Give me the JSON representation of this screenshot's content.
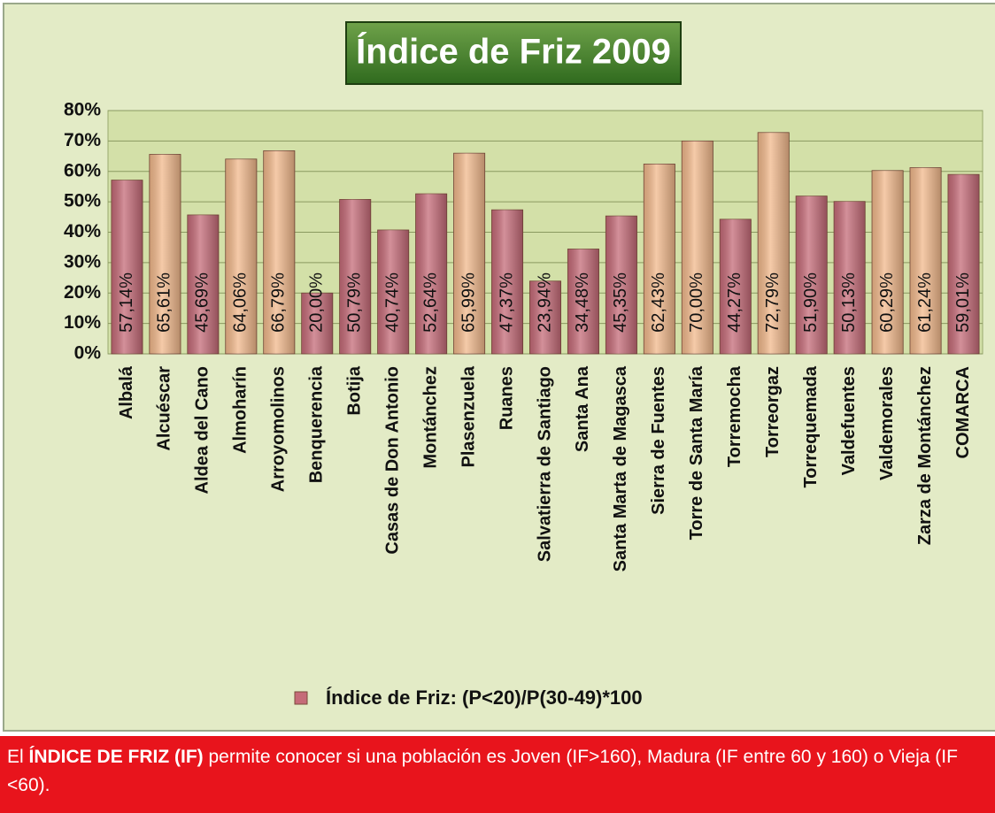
{
  "chart_data": {
    "type": "bar",
    "title": "Índice de Friz 2009",
    "categories": [
      "Albalá",
      "Alcuéscar",
      "Aldea del Cano",
      "Almoharín",
      "Arroyomolinos",
      "Benquerencia",
      "Botija",
      "Casas de Don Antonio",
      "Montánchez",
      "Plasenzuela",
      "Ruanes",
      "Salvatierra de Santiago",
      "Santa Ana",
      "Santa Marta de Magasca",
      "Sierra de Fuentes",
      "Torre de Santa María",
      "Torremocha",
      "Torreorgaz",
      "Torrequemada",
      "Valdefuentes",
      "Valdemorales",
      "Zarza de Montánchez",
      "COMARCA"
    ],
    "series": [
      {
        "name": "Índice de Friz: (P<20)/P(30-49)*100",
        "color": "#c56b78",
        "values": [
          57.14,
          65.61,
          45.69,
          64.06,
          66.79,
          20.0,
          50.79,
          40.74,
          52.64,
          65.99,
          47.37,
          23.94,
          34.48,
          45.35,
          62.43,
          70.0,
          44.27,
          72.79,
          51.9,
          50.13,
          60.29,
          61.24,
          59.01
        ],
        "value_labels": [
          "57,14%",
          "65,61%",
          "45,69%",
          "64,06%",
          "66,79%",
          "20,00%",
          "50,79%",
          "40,74%",
          "52,64%",
          "65,99%",
          "47,37%",
          "23,94%",
          "34,48%",
          "45,35%",
          "62,43%",
          "70,00%",
          "44,27%",
          "72,79%",
          "51,90%",
          "50,13%",
          "60,29%",
          "61,24%",
          "59,01%"
        ],
        "colors": [
          "#c56b78",
          "#f2b98c",
          "#c56b78",
          "#f2b98c",
          "#f2b98c",
          "#c56b78",
          "#c56b78",
          "#c56b78",
          "#c56b78",
          "#f2b98c",
          "#c56b78",
          "#c56b78",
          "#c56b78",
          "#c56b78",
          "#f2b98c",
          "#f2b98c",
          "#c56b78",
          "#f2b98c",
          "#c56b78",
          "#c56b78",
          "#f2b98c",
          "#f2b98c",
          "#c56b78"
        ]
      }
    ],
    "ylim": [
      0,
      80
    ],
    "yticks": [
      {
        "value": 0,
        "label": "0%"
      },
      {
        "value": 10,
        "label": "10%"
      },
      {
        "value": 20,
        "label": "20%"
      },
      {
        "value": 30,
        "label": "30%"
      },
      {
        "value": 40,
        "label": "40%"
      },
      {
        "value": 50,
        "label": "50%"
      },
      {
        "value": 60,
        "label": "60%"
      },
      {
        "value": 70,
        "label": "70%"
      },
      {
        "value": 80,
        "label": "80%"
      }
    ],
    "grid": true,
    "legend": "bottom"
  },
  "caption": {
    "start": "El ",
    "bold": "ÍNDICE DE FRIZ (IF)",
    "rest": " permite conocer si una población es Joven (IF>160), Madura (IF entre 60 y 160) o Vieja (IF <60)."
  }
}
